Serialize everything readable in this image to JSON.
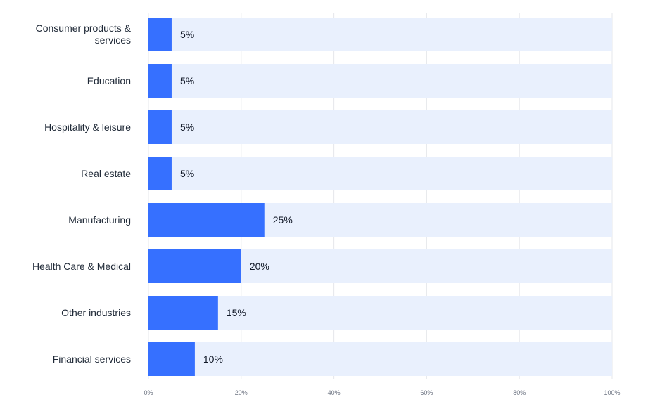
{
  "chart_data": {
    "type": "bar",
    "orientation": "horizontal",
    "categories": [
      "Consumer products & services",
      "Education",
      "Hospitality & leisure",
      "Real estate",
      "Manufacturing",
      "Health Care & Medical",
      "Other industries",
      "Financial services"
    ],
    "values": [
      5,
      5,
      5,
      5,
      25,
      20,
      15,
      10
    ],
    "value_labels": [
      "5%",
      "5%",
      "5%",
      "5%",
      "25%",
      "20%",
      "15%",
      "10%"
    ],
    "xlim": [
      0,
      100
    ],
    "xticks": [
      0,
      20,
      40,
      60,
      80,
      100
    ],
    "xtick_labels": [
      "0%",
      "20%",
      "40%",
      "60%",
      "80%",
      "100%"
    ],
    "title": "",
    "xlabel": "",
    "ylabel": "",
    "grid": true,
    "legend": "none",
    "colors": {
      "bar": "#3670ff",
      "track": "#e9f0fd",
      "grid": "#e5e7eb",
      "category_text": "#1f2937",
      "value_text": "#111827",
      "tick_text": "#6b7280"
    }
  }
}
